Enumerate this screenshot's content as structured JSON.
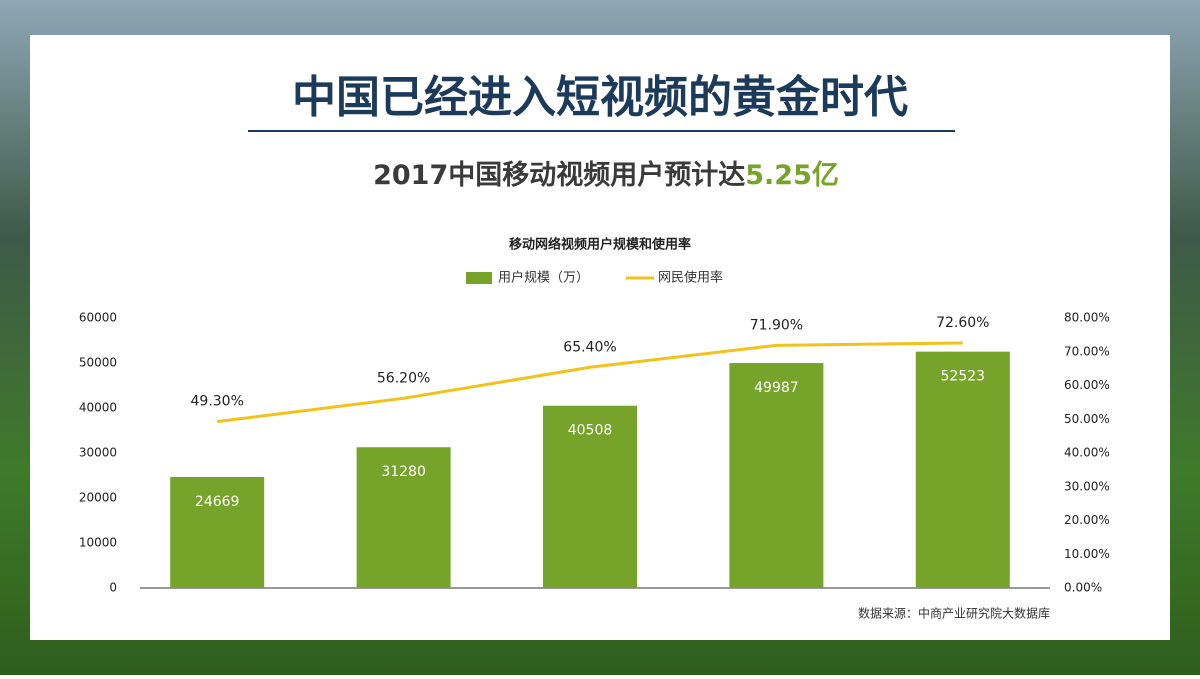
{
  "slide": {
    "title": "中国已经进入短视频的黄金时代",
    "subtitle": "2017中国移动视频用户预计达",
    "subtitle_highlight": "5.25亿",
    "source": "数据来源：中商产业研究院大数据库"
  },
  "chart_data": {
    "type": "bar",
    "title": "移动网络视频用户规模和使用率",
    "categories": [
      null,
      null,
      null,
      null,
      null
    ],
    "series": [
      {
        "name": "用户规模（万）",
        "type": "bar",
        "color": "#76a32a",
        "values": [
          24669,
          31280,
          40508,
          49987,
          52523
        ]
      },
      {
        "name": "网民使用率",
        "type": "line",
        "axis": "y2",
        "color": "#f2c21b",
        "values": [
          49.3,
          56.2,
          65.4,
          71.9,
          72.6
        ],
        "value_labels": [
          "49.30%",
          "56.20%",
          "65.40%",
          "71.90%",
          "72.60%"
        ]
      }
    ],
    "ylim": [
      0,
      60000
    ],
    "yticks": [
      0,
      10000,
      20000,
      30000,
      40000,
      50000,
      60000
    ],
    "y2lim": [
      0,
      80
    ],
    "y2ticks": [
      {
        "value": 0,
        "label": "0.00%"
      },
      {
        "value": 10,
        "label": "10.00%"
      },
      {
        "value": 20,
        "label": "20.00%"
      },
      {
        "value": 30,
        "label": "30.00%"
      },
      {
        "value": 40,
        "label": "40.00%"
      },
      {
        "value": 50,
        "label": "50.00%"
      },
      {
        "value": 60,
        "label": "60.00%"
      },
      {
        "value": 70,
        "label": "70.00%"
      },
      {
        "value": 80,
        "label": "80.00%"
      }
    ],
    "grid": false,
    "legend": "top"
  }
}
